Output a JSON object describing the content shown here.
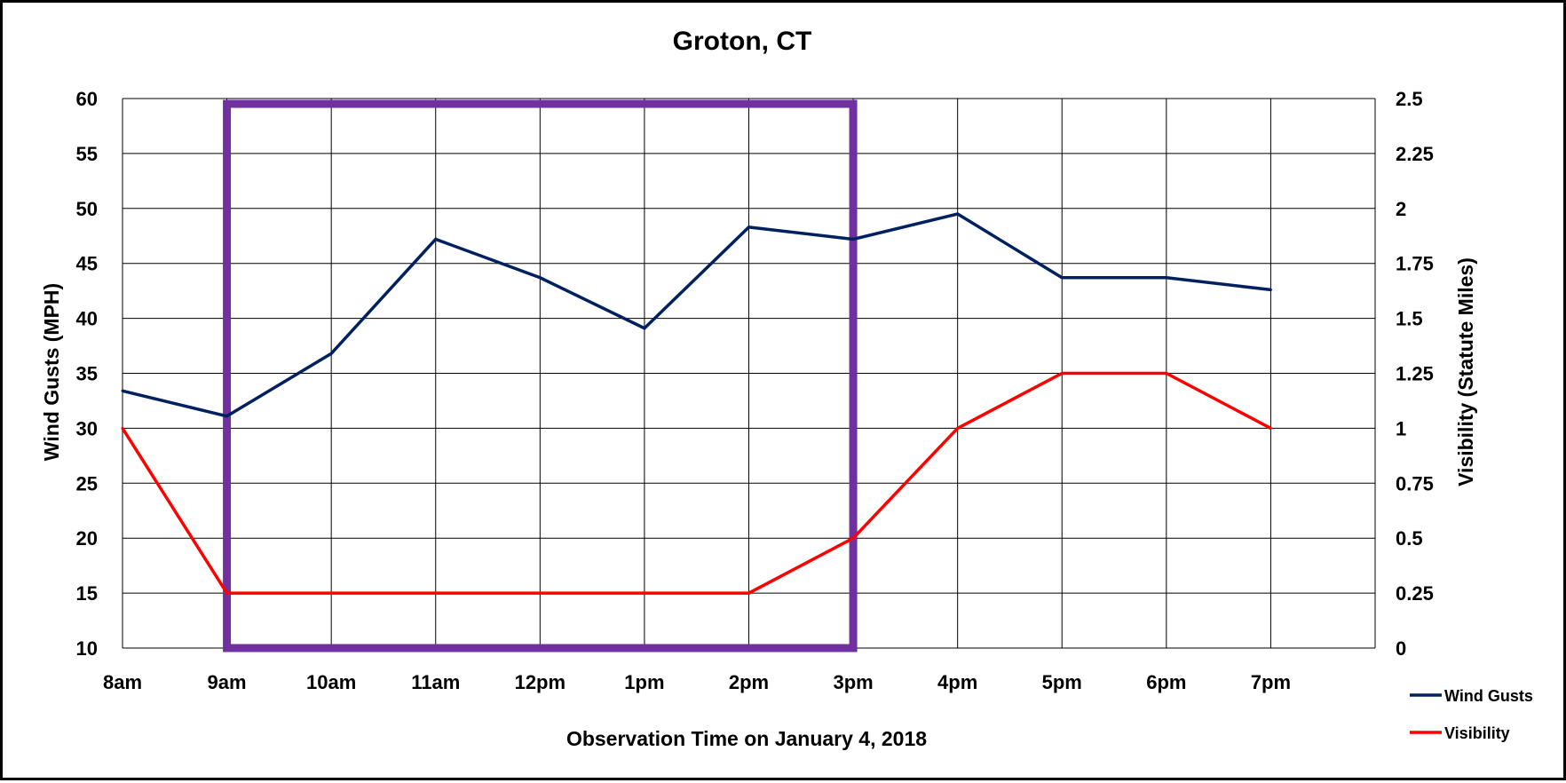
{
  "chart_data": {
    "type": "line",
    "title": "Groton, CT",
    "xlabel": "Observation Time on January 4, 2018",
    "ylabel": "Wind Gusts (MPH)",
    "y2label": "Visibility (Statute Miles)",
    "categories": [
      "8am",
      "9am",
      "10am",
      "11am",
      "12pm",
      "1pm",
      "2pm",
      "3pm",
      "4pm",
      "5pm",
      "6pm",
      "7pm"
    ],
    "ylim": [
      10,
      60
    ],
    "y2lim": [
      0,
      2.5
    ],
    "yticks": [
      "10",
      "15",
      "20",
      "25",
      "30",
      "35",
      "40",
      "45",
      "50",
      "55",
      "60"
    ],
    "y2ticks": [
      "0",
      "0.25",
      "0.5",
      "0.75",
      "1",
      "1.25",
      "1.5",
      "1.75",
      "2",
      "2.25",
      "2.5"
    ],
    "grid": true,
    "legend_position": "bottom-right",
    "series": [
      {
        "name": "Wind Gusts",
        "axis": "left",
        "color": "#002060",
        "values": [
          33.4,
          31.1,
          36.8,
          47.2,
          43.7,
          39.1,
          48.3,
          47.2,
          49.5,
          43.7,
          43.7,
          42.6
        ]
      },
      {
        "name": "Visibility",
        "axis": "right",
        "color": "#ff0000",
        "values": [
          1.0,
          0.25,
          0.25,
          0.25,
          0.25,
          0.25,
          0.25,
          0.5,
          1.0,
          1.25,
          1.25,
          1.0
        ]
      }
    ],
    "highlight_box": {
      "from_category": "9am",
      "to_category": "3pm",
      "color": "#7030a0"
    }
  }
}
